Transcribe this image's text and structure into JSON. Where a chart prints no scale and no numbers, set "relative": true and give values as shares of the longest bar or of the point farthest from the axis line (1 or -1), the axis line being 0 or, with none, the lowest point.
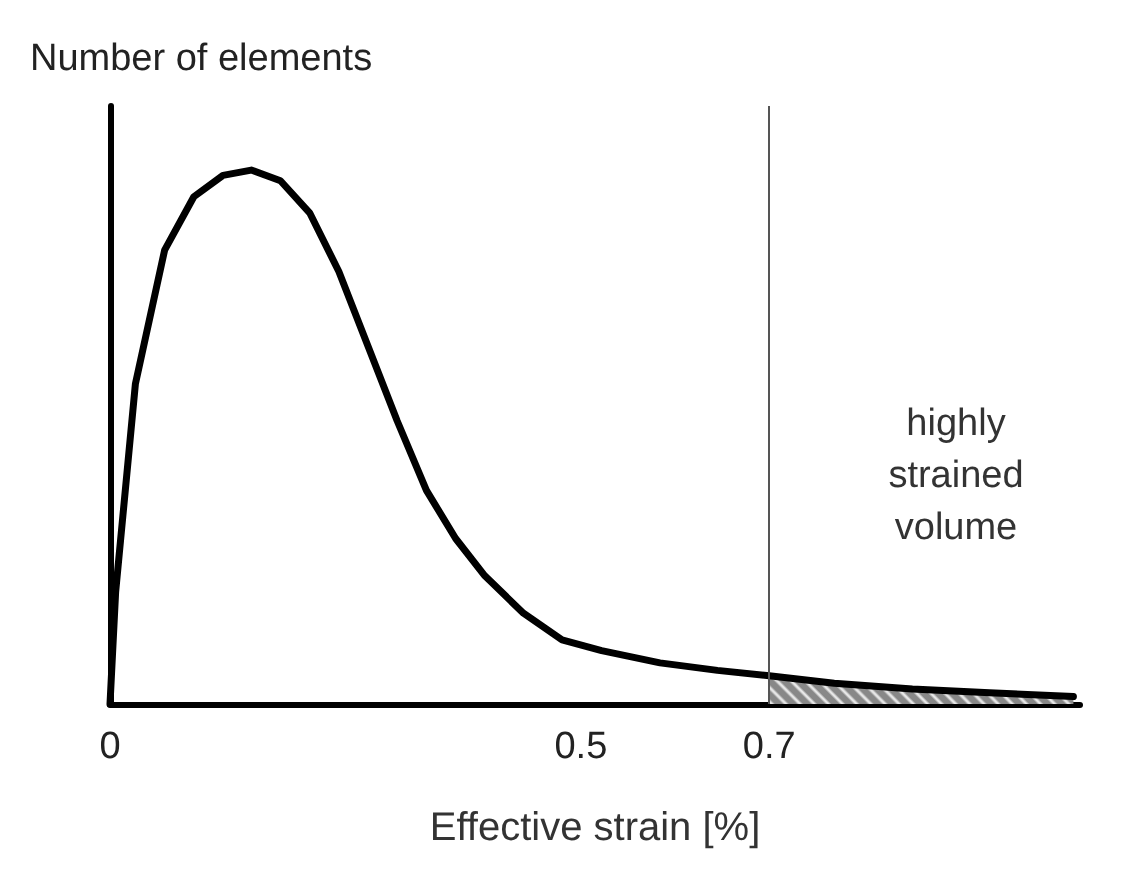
{
  "chart_data": {
    "type": "line",
    "relative": true,
    "xlabel": "Effective strain [%]",
    "ylabel": "Number of elements",
    "xlim": [
      0,
      1.03
    ],
    "xticks": [
      0,
      0.5,
      0.7
    ],
    "grid": false,
    "marker": "none",
    "line_style": "solid",
    "series": [
      {
        "color": "#000000",
        "x": [
          0,
          0.006,
          0.027,
          0.058,
          0.089,
          0.12,
          0.15,
          0.181,
          0.212,
          0.243,
          0.274,
          0.305,
          0.336,
          0.367,
          0.398,
          0.439,
          0.48,
          0.522,
          0.584,
          0.645,
          0.7,
          0.769,
          0.852,
          0.934,
          1.023
        ],
        "values": [
          0,
          0.21,
          0.6,
          0.85,
          0.95,
          0.99,
          1,
          0.98,
          0.92,
          0.81,
          0.67,
          0.53,
          0.4,
          0.31,
          0.24,
          0.17,
          0.12,
          0.1,
          0.077,
          0.063,
          0.053,
          0.039,
          0.028,
          0.021,
          0.014
        ]
      },
      {
        "type": "area",
        "color": "#888888",
        "x": [
          0.7,
          0.769,
          0.852,
          0.934,
          1.023
        ],
        "values": [
          0.053,
          0.039,
          0.028,
          0.021,
          0.014
        ]
      }
    ],
    "ref_lines": [
      {
        "axis": "x",
        "value": 0.7,
        "color": "#555555"
      }
    ],
    "annotations": [
      "highly\nstrained\nvolume"
    ]
  }
}
